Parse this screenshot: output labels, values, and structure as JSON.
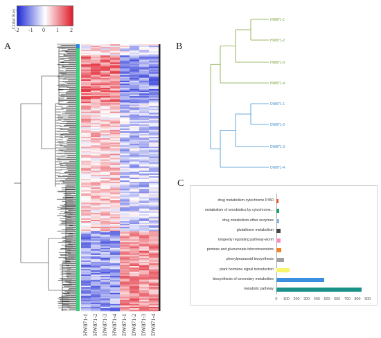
{
  "panels": {
    "a": "A",
    "b": "B",
    "c": "C"
  },
  "color_key": {
    "title": "Color Key",
    "ticks": [
      "-2",
      "-1",
      "0",
      "1",
      "2"
    ],
    "colors": {
      "low": "#1f2bd6",
      "mid": "#ffffff",
      "high": "#e01d2a"
    }
  },
  "heatmap": {
    "columns": [
      "HW871-1",
      "HW871-2",
      "HW871-3",
      "HW871-4",
      "DW871-1",
      "DW871-2",
      "DW871-3",
      "DW871-4"
    ],
    "cluster_bar_colors": [
      "#1e88e5",
      "#35d37a"
    ]
  },
  "dendrogram_b": {
    "groups": [
      {
        "color": "#7aa23a",
        "leaves": [
          "HW871-1",
          "HW871-2",
          "HW871-3",
          "HW871-4"
        ]
      },
      {
        "color": "#3b8fd0",
        "leaves": [
          "DW871-1",
          "DW871-2",
          "DW871-3",
          "DW871-4"
        ]
      }
    ]
  },
  "chart_data": {
    "type": "bar",
    "orientation": "horizontal",
    "categories": [
      "drug metabolism-cytochrome P450",
      "metabolism of xenobiotics by cytochrome...",
      "drug metabolism-other enzymes",
      "glutathione metabolism",
      "longevity regulating pathway-worm",
      "pentose and glucuronate interconversions",
      "phenylpropanoid biosynthesis",
      "plant hormone signal transduction",
      "biosynthesis of secondary metabolites",
      "metabolic pathway"
    ],
    "values": [
      20,
      25,
      30,
      38,
      42,
      50,
      78,
      130,
      470,
      840
    ],
    "colors": [
      "#e0572a",
      "#1aa061",
      "#8fb3e0",
      "#444444",
      "#f08fc0",
      "#f0822a",
      "#a0a0a0",
      "#f7f56b",
      "#3b8fe0",
      "#1a9189"
    ],
    "xticks": [
      "0",
      "100",
      "200",
      "300",
      "400",
      "500",
      "600",
      "700",
      "800",
      "900"
    ],
    "xlim": [
      0,
      900
    ]
  }
}
